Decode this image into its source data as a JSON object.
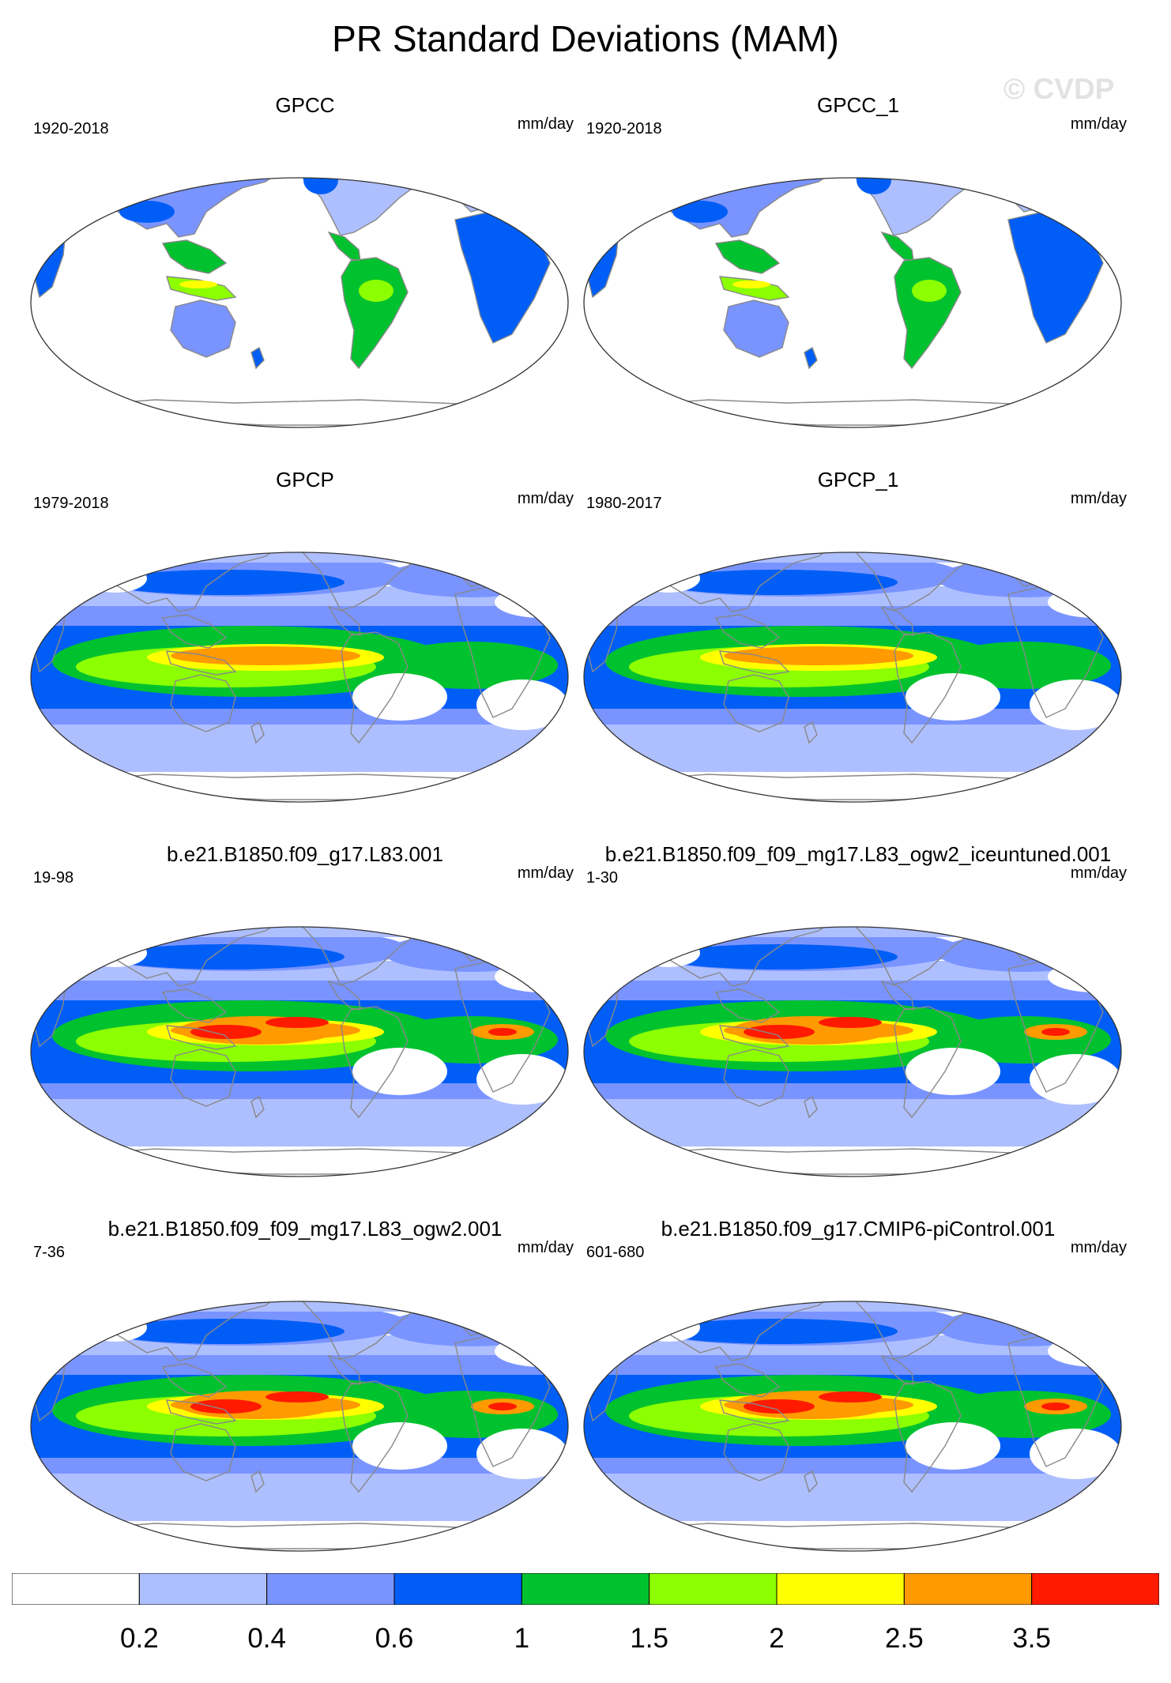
{
  "title": "PR Standard Deviations (MAM)",
  "watermark": "© CVDP",
  "colors": [
    "#ffffff",
    "#aebfff",
    "#7a94ff",
    "#005ef7",
    "#00c22f",
    "#8cff00",
    "#ffff00",
    "#ff9a00",
    "#ff1a00"
  ],
  "colorbar": {
    "labels": [
      "0.2",
      "0.4",
      "0.6",
      "1",
      "1.5",
      "2",
      "2.5",
      "3.5"
    ]
  },
  "panels": [
    {
      "title": "GPCC",
      "period": "1920-2018",
      "units": "mm/day",
      "coverage": "land",
      "intensity": 0
    },
    {
      "title": "GPCC_1",
      "period": "1920-2018",
      "units": "mm/day",
      "coverage": "land",
      "intensity": 0
    },
    {
      "title": "GPCP",
      "period": "1979-2018",
      "units": "mm/day",
      "coverage": "global",
      "intensity": 1
    },
    {
      "title": "GPCP_1",
      "period": "1980-2017",
      "units": "mm/day",
      "coverage": "global",
      "intensity": 1
    },
    {
      "title": "b.e21.B1850.f09_g17.L83.001",
      "period": "19-98",
      "units": "mm/day",
      "coverage": "global",
      "intensity": 2
    },
    {
      "title": "b.e21.B1850.f09_f09_mg17.L83_ogw2_iceuntuned.001",
      "period": "1-30",
      "units": "mm/day",
      "coverage": "global",
      "intensity": 2
    },
    {
      "title": "b.e21.B1850.f09_f09_mg17.L83_ogw2.001",
      "period": "7-36",
      "units": "mm/day",
      "coverage": "global",
      "intensity": 2
    },
    {
      "title": "b.e21.B1850.f09_g17.CMIP6-piControl.001",
      "period": "601-680",
      "units": "mm/day",
      "coverage": "global",
      "intensity": 2
    }
  ]
}
